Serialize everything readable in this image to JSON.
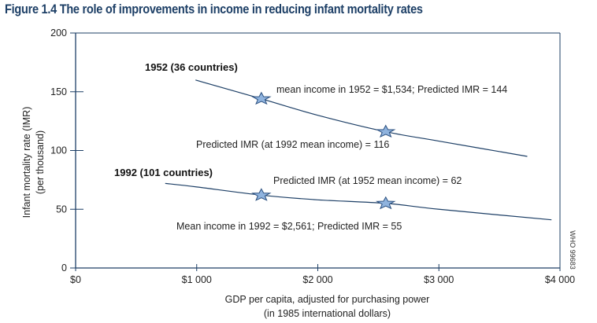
{
  "chart_data": {
    "type": "line",
    "title": "Figure 1.4  The role of improvements in income in reducing infant mortality rates",
    "xlabel": [
      "GDP per capita, adjusted for purchasing power",
      "(in 1985 international dollars)"
    ],
    "ylabel": [
      "Infant mortality rate (IMR)",
      "(per thousand)"
    ],
    "xlim": [
      0,
      4000
    ],
    "ylim": [
      0,
      200
    ],
    "x_ticks": [
      0,
      1000,
      2000,
      3000,
      4000
    ],
    "x_tick_labels": [
      "$0",
      "$1 000",
      "$2 000",
      "$3 000",
      "$4 000"
    ],
    "y_ticks": [
      0,
      50,
      100,
      150,
      200
    ],
    "y_tick_labels": [
      "0",
      "50",
      "100",
      "150",
      "200"
    ],
    "grid": false,
    "series": [
      {
        "name": "1952 (36 countries)",
        "x": [
          990,
          1534,
          2000,
          2561,
          3000,
          3730
        ],
        "y": [
          160,
          144,
          130,
          116,
          108,
          95
        ],
        "markers": [
          {
            "x": 1534,
            "y": 144,
            "label": "mean income in 1952 = $1,534; Predicted IMR = 144"
          },
          {
            "x": 2561,
            "y": 116,
            "label": "Predicted IMR (at 1992 mean income) = 116"
          }
        ]
      },
      {
        "name": "1992 (101 countries)",
        "x": [
          740,
          1000,
          1534,
          2000,
          2561,
          3000,
          3930
        ],
        "y": [
          72,
          69,
          62,
          58,
          55,
          50,
          41
        ],
        "markers": [
          {
            "x": 1534,
            "y": 62,
            "label": "Predicted IMR (at 1952 mean income) = 62"
          },
          {
            "x": 2561,
            "y": 55,
            "label": "Mean income in 1992 = $2,561; Predicted IMR = 55"
          }
        ]
      }
    ],
    "credit": "WHO 99683"
  },
  "colors": {
    "title": "#1d3f66",
    "axis": "#1d3f66",
    "line": "#1d3f66",
    "marker_fill": "#8fb3de",
    "marker_stroke": "#2a4f7f"
  }
}
